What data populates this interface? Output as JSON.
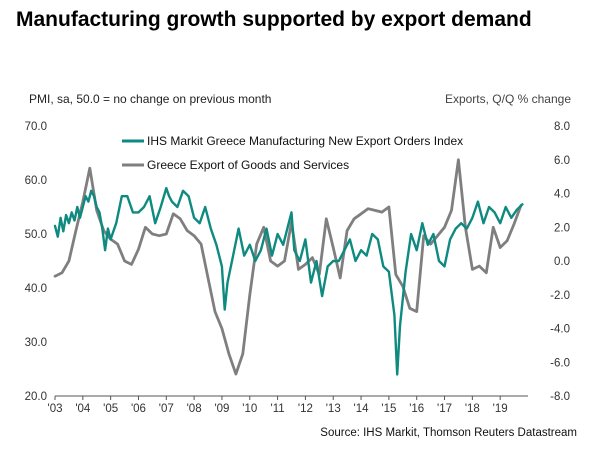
{
  "chart_data": {
    "type": "line",
    "title": "Manufacturing growth supported by export demand",
    "left_axis_label": "PMI, sa, 50.0 = no change on previous month",
    "right_axis_label": "Exports, Q/Q % change",
    "source": "Source: IHS Markit, Thomson Reuters Datastream",
    "x_ticks": [
      "'03",
      "'04",
      "'05",
      "'06",
      "'07",
      "'08",
      "'09",
      "'10",
      "'11",
      "'12",
      "'13",
      "'14",
      "'15",
      "'16",
      "'17",
      "'18",
      "'19"
    ],
    "x_range": [
      2003,
      2020
    ],
    "left_ylim": [
      20,
      70
    ],
    "left_ticks": [
      "20.0",
      "30.0",
      "40.0",
      "50.0",
      "60.0",
      "70.0"
    ],
    "right_ylim": [
      -8,
      8
    ],
    "right_ticks": [
      "-8.0",
      "-6.0",
      "-4.0",
      "-2.0",
      "0.0",
      "2.0",
      "4.0",
      "6.0",
      "8.0"
    ],
    "legend_position": "top",
    "series": [
      {
        "name": "IHS Markit Greece Manufacturing New Export Orders Index",
        "axis": "left",
        "color": "#0e8a80",
        "x": [
          2003.0,
          2003.1,
          2003.2,
          2003.3,
          2003.4,
          2003.5,
          2003.6,
          2003.7,
          2003.8,
          2003.9,
          2004.0,
          2004.1,
          2004.2,
          2004.3,
          2004.4,
          2004.5,
          2004.6,
          2004.7,
          2004.8,
          2004.9,
          2005.0,
          2005.2,
          2005.4,
          2005.6,
          2005.8,
          2006.0,
          2006.2,
          2006.4,
          2006.6,
          2006.8,
          2007.0,
          2007.1,
          2007.2,
          2007.4,
          2007.6,
          2007.8,
          2008.0,
          2008.2,
          2008.4,
          2008.6,
          2008.8,
          2009.0,
          2009.1,
          2009.2,
          2009.4,
          2009.6,
          2009.8,
          2010.0,
          2010.2,
          2010.4,
          2010.6,
          2010.8,
          2011.0,
          2011.2,
          2011.4,
          2011.5,
          2011.6,
          2011.8,
          2012.0,
          2012.2,
          2012.4,
          2012.6,
          2012.8,
          2013.0,
          2013.2,
          2013.4,
          2013.6,
          2013.8,
          2014.0,
          2014.2,
          2014.4,
          2014.6,
          2014.8,
          2015.0,
          2015.2,
          2015.3,
          2015.4,
          2015.5,
          2015.6,
          2015.8,
          2016.0,
          2016.2,
          2016.4,
          2016.6,
          2016.8,
          2017.0,
          2017.2,
          2017.4,
          2017.6,
          2017.8,
          2018.0,
          2018.2,
          2018.4,
          2018.6,
          2018.8,
          2019.0,
          2019.2,
          2019.4,
          2019.6,
          2019.8
        ],
        "y": [
          51.5,
          49.5,
          53,
          50.5,
          53.5,
          52,
          54,
          52.5,
          55,
          53,
          55,
          57,
          56,
          58,
          57,
          55,
          54,
          51,
          47,
          51,
          49,
          52,
          57,
          57,
          54,
          54,
          55,
          57,
          52,
          55,
          58.5,
          57,
          56,
          55,
          58,
          57,
          53,
          52,
          55,
          51,
          48,
          44,
          36,
          41,
          46,
          51,
          46,
          48,
          45,
          47,
          51,
          46,
          50,
          48,
          52,
          54,
          47,
          45,
          49,
          41,
          45,
          38.5,
          44,
          45,
          45,
          47,
          49,
          45,
          47,
          46,
          50,
          49,
          44,
          43,
          35,
          24,
          33,
          38,
          43,
          50,
          47,
          52,
          48,
          50,
          45,
          44,
          49,
          51,
          52,
          51,
          53,
          56,
          52,
          55,
          54,
          52,
          55,
          53,
          54.5,
          55.5
        ]
      },
      {
        "name": "Greece Export of Goods and Services",
        "axis": "right",
        "color": "#7f7f7f",
        "x": [
          2003.0,
          2003.25,
          2003.5,
          2003.75,
          2004.0,
          2004.25,
          2004.5,
          2004.75,
          2005.0,
          2005.25,
          2005.5,
          2005.75,
          2006.0,
          2006.25,
          2006.5,
          2006.75,
          2007.0,
          2007.25,
          2007.5,
          2007.75,
          2008.0,
          2008.25,
          2008.5,
          2008.75,
          2009.0,
          2009.25,
          2009.5,
          2009.75,
          2010.0,
          2010.25,
          2010.5,
          2010.75,
          2011.0,
          2011.25,
          2011.5,
          2011.75,
          2012.0,
          2012.25,
          2012.5,
          2012.75,
          2013.0,
          2013.25,
          2013.5,
          2013.75,
          2014.0,
          2014.25,
          2014.5,
          2014.75,
          2015.0,
          2015.25,
          2015.5,
          2015.75,
          2016.0,
          2016.25,
          2016.5,
          2016.75,
          2017.0,
          2017.25,
          2017.5,
          2017.75,
          2018.0,
          2018.25,
          2018.5,
          2018.75,
          2019.0,
          2019.25,
          2019.5,
          2019.75
        ],
        "y": [
          -0.9,
          -0.7,
          0.0,
          1.8,
          3.5,
          5.5,
          3.0,
          1.8,
          1.3,
          1.0,
          0.0,
          -0.2,
          0.7,
          2.0,
          1.6,
          1.5,
          1.6,
          2.8,
          2.5,
          1.8,
          1.5,
          1.0,
          -1.0,
          -3.0,
          -4.0,
          -5.5,
          -6.7,
          -5.5,
          -2.0,
          1.0,
          2.0,
          0.0,
          -0.3,
          0.0,
          2.3,
          -0.5,
          -0.2,
          0.2,
          -0.8,
          2.5,
          0.8,
          -1.0,
          1.8,
          2.5,
          2.8,
          3.1,
          3.0,
          2.9,
          3.2,
          -0.8,
          -1.5,
          -2.8,
          -3.0,
          1.5,
          1.0,
          1.5,
          2.0,
          3.0,
          6.0,
          2.0,
          -0.5,
          -0.3,
          -0.7,
          2.0,
          0.8,
          1.2,
          2.2,
          3.3
        ]
      }
    ]
  }
}
